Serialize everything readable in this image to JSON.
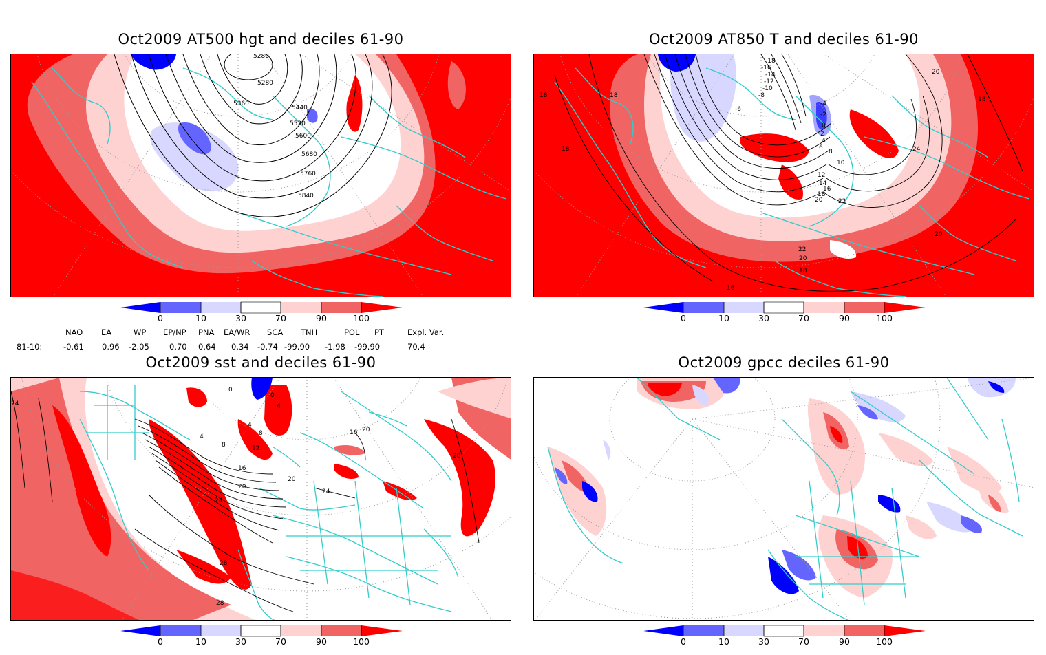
{
  "panels": [
    {
      "title": "Oct2009 AT500 hgt and deciles 61-90",
      "contour_labels": [
        "5280",
        "5280",
        "5360",
        "5440",
        "5520",
        "5600",
        "5680",
        "5760",
        "5840"
      ]
    },
    {
      "title": "Oct2009 AT850 T and deciles 61-90",
      "contour_labels": [
        "-18",
        "-16",
        "-14",
        "-12",
        "-10",
        "-8",
        "-6",
        "-4",
        "-2",
        "0",
        "2",
        "4",
        "6",
        "8",
        "10",
        "12",
        "14",
        "16",
        "18",
        "20",
        "22",
        "24",
        "18",
        "18",
        "18",
        "18",
        "20",
        "20",
        "22",
        "20",
        "18",
        "16"
      ]
    },
    {
      "title": "Oct2009 sst and deciles 61-90",
      "contour_labels": [
        "0",
        "4",
        "4",
        "8",
        "8",
        "12",
        "16",
        "20",
        "24",
        "28",
        "28",
        "24",
        "20",
        "24",
        "16",
        "20",
        "28",
        "0",
        "4"
      ]
    },
    {
      "title": "Oct2009 gpcc deciles 61-90",
      "contour_labels": []
    }
  ],
  "colorbar": {
    "labels": [
      "0",
      "10",
      "30",
      "70",
      "90",
      "100"
    ],
    "colors": [
      "#0000ff",
      "#6464ff",
      "#d7d7ff",
      "#ffffff",
      "#ffd2d2",
      "#f06464",
      "#ff0000"
    ]
  },
  "indices": {
    "headers": [
      "NAO",
      "EA",
      "WP",
      "EP/NP",
      "PNA",
      "EA/WR",
      "SCA",
      "TNH",
      "POL",
      "PT",
      "Expl. Var."
    ],
    "row_label": "81-10:",
    "values": [
      "-0.61",
      "0.96",
      "-2.05",
      "0.70",
      "0.64",
      "0.34",
      "-0.74",
      "-99.90",
      "-1.98",
      "-99.90",
      "70.4"
    ]
  },
  "legend_colors": {
    "coast": "#33cccc",
    "contour": "#000000",
    "grid": "#9a9a9a"
  }
}
